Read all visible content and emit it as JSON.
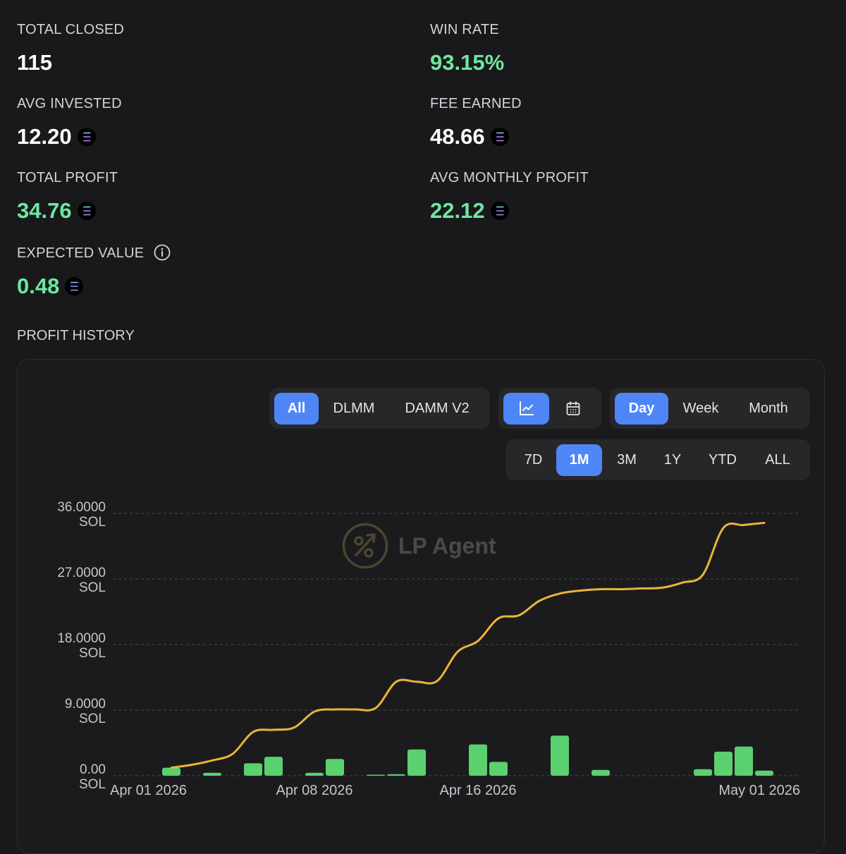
{
  "stats": {
    "total_closed": {
      "label": "TOTAL CLOSED",
      "value": "115"
    },
    "win_rate": {
      "label": "WIN RATE",
      "value": "93.15%"
    },
    "avg_invested": {
      "label": "AVG INVESTED",
      "value": "12.20"
    },
    "fee_earned": {
      "label": "FEE EARNED",
      "value": "48.66"
    },
    "total_profit": {
      "label": "TOTAL PROFIT",
      "value": "34.76"
    },
    "avg_monthly_profit": {
      "label": "AVG MONTHLY PROFIT",
      "value": "22.12"
    },
    "expected_value": {
      "label": "EXPECTED VALUE",
      "value": "0.48"
    }
  },
  "icons": {
    "currency": "solana-icon",
    "info": "info-icon"
  },
  "profit_history": {
    "title": "PROFIT HISTORY",
    "pool_filters": [
      {
        "label": "All",
        "active": true
      },
      {
        "label": "DLMM",
        "active": false
      },
      {
        "label": "DAMM V2",
        "active": false
      }
    ],
    "view_modes": [
      {
        "icon": "line-chart-icon",
        "active": true
      },
      {
        "icon": "calendar-icon",
        "active": false
      }
    ],
    "granularity": [
      {
        "label": "Day",
        "active": true
      },
      {
        "label": "Week",
        "active": false
      },
      {
        "label": "Month",
        "active": false
      }
    ],
    "ranges": [
      {
        "label": "7D",
        "active": false
      },
      {
        "label": "1M",
        "active": true
      },
      {
        "label": "3M",
        "active": false
      },
      {
        "label": "1Y",
        "active": false
      },
      {
        "label": "YTD",
        "active": false
      },
      {
        "label": "ALL",
        "active": false
      }
    ],
    "watermark": "LP Agent"
  },
  "colors": {
    "background": "#19191b",
    "accent_blue": "#4f86f7",
    "profit_green": "#6ee7a0",
    "bar_green": "#5bd06f",
    "line_gold": "#e8b43c",
    "grid": "#48484c"
  },
  "chart_data": {
    "type": "bar",
    "y_tick_labels": [
      {
        "value": 36,
        "line1": "36.0000",
        "line2": "SOL"
      },
      {
        "value": 27,
        "line1": "27.0000",
        "line2": "SOL"
      },
      {
        "value": 18,
        "line1": "18.0000",
        "line2": "SOL"
      },
      {
        "value": 9,
        "line1": "9.0000",
        "line2": "SOL"
      },
      {
        "value": 0,
        "line1": "0.00",
        "line2": "SOL"
      }
    ],
    "ylim": [
      0,
      36
    ],
    "x_tick_labels": [
      {
        "date": "2026-04-01",
        "label": "Apr 01 2026"
      },
      {
        "date": "2026-04-08",
        "label": "Apr 08 2026"
      },
      {
        "date": "2026-04-16",
        "label": "Apr 16 2026"
      },
      {
        "date": "2026-05-01",
        "label": "May 01 2026"
      }
    ],
    "grid": "dashed horizontal",
    "series": [
      {
        "type": "bar",
        "x": [
          "2026-04-01",
          "2026-04-02",
          "2026-04-03",
          "2026-04-04",
          "2026-04-05",
          "2026-04-06",
          "2026-04-07",
          "2026-04-08",
          "2026-04-09",
          "2026-04-10",
          "2026-04-11",
          "2026-04-12",
          "2026-04-13",
          "2026-04-14",
          "2026-04-15",
          "2026-04-16",
          "2026-04-17",
          "2026-04-18",
          "2026-04-19",
          "2026-04-20",
          "2026-04-21",
          "2026-04-22",
          "2026-04-23",
          "2026-04-24",
          "2026-04-25",
          "2026-04-26",
          "2026-04-27",
          "2026-04-28",
          "2026-04-29",
          "2026-04-30"
        ],
        "values": [
          1.1,
          0,
          0.4,
          0,
          1.7,
          2.6,
          0,
          0.4,
          2.3,
          0,
          0.15,
          0.2,
          3.6,
          0,
          0,
          4.3,
          1.9,
          0,
          0,
          5.5,
          0,
          0.8,
          0,
          0,
          0,
          0,
          0.9,
          3.3,
          4.0,
          0.7
        ]
      },
      {
        "type": "line",
        "x": [
          "2026-04-01",
          "2026-04-02",
          "2026-04-03",
          "2026-04-04",
          "2026-04-05",
          "2026-04-06",
          "2026-04-07",
          "2026-04-08",
          "2026-04-09",
          "2026-04-10",
          "2026-04-11",
          "2026-04-12",
          "2026-04-13",
          "2026-04-14",
          "2026-04-15",
          "2026-04-16",
          "2026-04-17",
          "2026-04-18",
          "2026-04-19",
          "2026-04-20",
          "2026-04-21",
          "2026-04-22",
          "2026-04-23",
          "2026-04-24",
          "2026-04-25",
          "2026-04-26",
          "2026-04-27",
          "2026-04-28",
          "2026-04-29",
          "2026-04-30"
        ],
        "values": [
          1.1,
          1.5,
          2.1,
          3.0,
          6.0,
          6.3,
          6.6,
          8.8,
          9.1,
          9.1,
          9.3,
          12.9,
          12.9,
          13.0,
          17.0,
          18.5,
          21.6,
          22.0,
          24.0,
          25.0,
          25.4,
          25.6,
          25.6,
          25.7,
          25.8,
          26.5,
          27.6,
          34.0,
          34.4,
          34.7
        ]
      }
    ]
  }
}
